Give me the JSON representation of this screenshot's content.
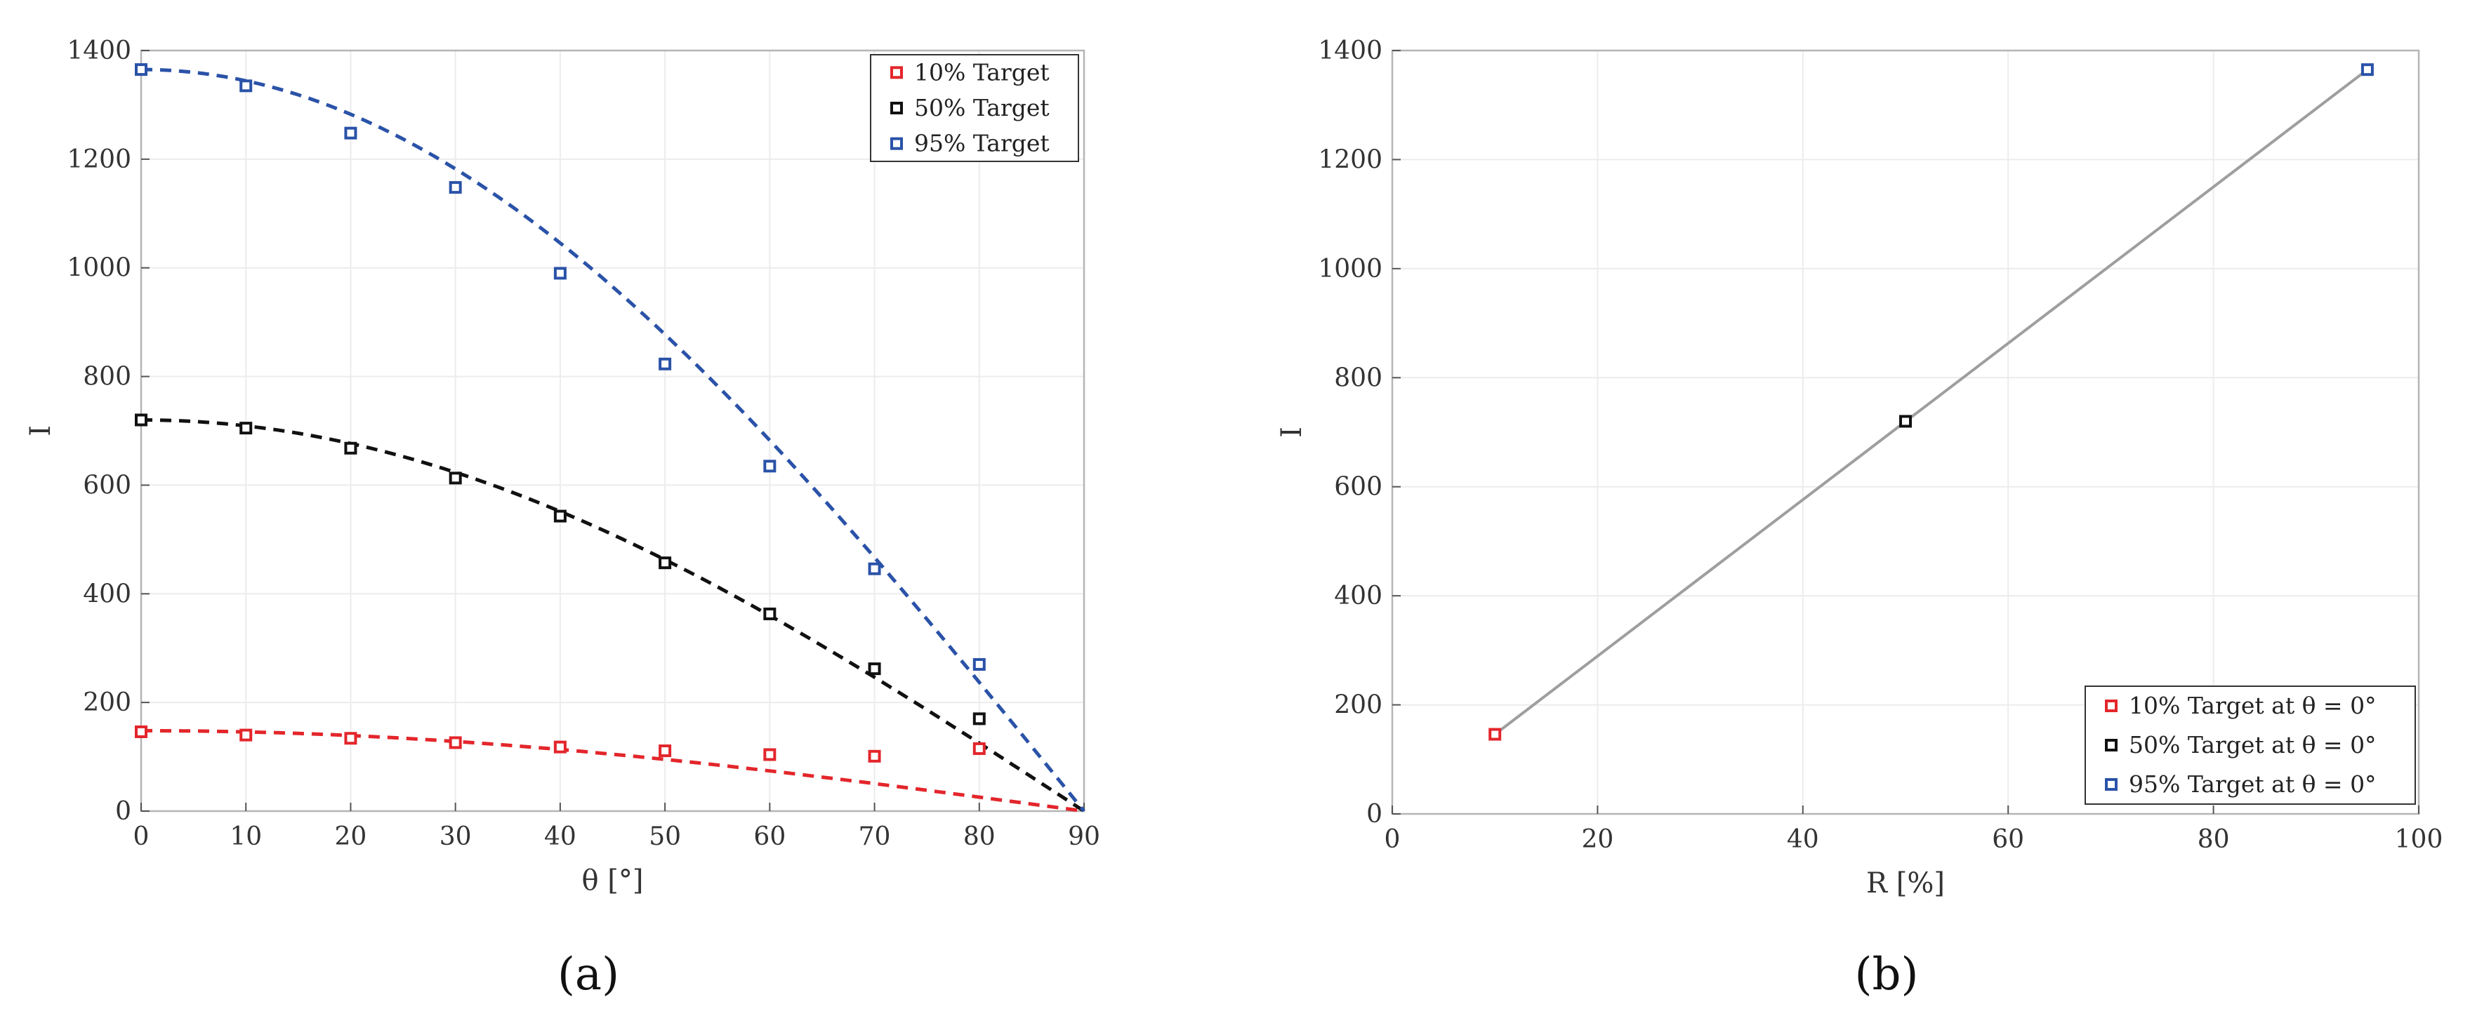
{
  "chart_data": [
    {
      "panel_label": "(a)",
      "type": "scatter",
      "xlabel": "θ [°]",
      "ylabel": "I",
      "xlim": [
        0,
        90
      ],
      "ylim": [
        0,
        1400
      ],
      "xticks": [
        "0",
        "10",
        "20",
        "30",
        "40",
        "50",
        "60",
        "70",
        "80",
        "90"
      ],
      "yticks": [
        "0",
        "200",
        "400",
        "600",
        "800",
        "1000",
        "1200",
        "1400"
      ],
      "grid": true,
      "legend_position": "top-right",
      "x": [
        0,
        10,
        20,
        30,
        40,
        50,
        60,
        70,
        80
      ],
      "series": [
        {
          "name": "10% Target",
          "color": "#e3262b",
          "values": [
            146,
            140,
            134,
            126,
            118,
            111,
            104,
            101,
            115
          ],
          "fit_peak": 148
        },
        {
          "name": "50% Target",
          "color": "#111111",
          "values": [
            720,
            705,
            668,
            613,
            543,
            457,
            363,
            262,
            170
          ],
          "fit_peak": 720
        },
        {
          "name": "95% Target",
          "color": "#2a52a8",
          "values": [
            1365,
            1335,
            1248,
            1148,
            990,
            823,
            635,
            446,
            270
          ],
          "fit_peak": 1365
        }
      ],
      "fit_model": "I_0 · cos θ (dashed)"
    },
    {
      "panel_label": "(b)",
      "type": "scatter",
      "xlabel": "R [%]",
      "ylabel": "I",
      "xlim": [
        0,
        100
      ],
      "ylim": [
        0,
        1400
      ],
      "xticks": [
        "0",
        "20",
        "40",
        "60",
        "80",
        "100"
      ],
      "yticks": [
        "0",
        "200",
        "400",
        "600",
        "800",
        "1000",
        "1200",
        "1400"
      ],
      "grid": true,
      "legend_position": "bottom-right",
      "series": [
        {
          "name": "10% Target at θ = 0°",
          "color": "#e3262b",
          "x": [
            10
          ],
          "values": [
            146
          ]
        },
        {
          "name": "50% Target at θ = 0°",
          "color": "#111111",
          "x": [
            50
          ],
          "values": [
            720
          ]
        },
        {
          "name": "95% Target at θ = 0°",
          "color": "#2a52a8",
          "x": [
            95
          ],
          "values": [
            1365
          ]
        }
      ],
      "fit_line": {
        "color": "#9e9e9e",
        "x": [
          10,
          95
        ],
        "values": [
          146,
          1365
        ]
      }
    }
  ]
}
